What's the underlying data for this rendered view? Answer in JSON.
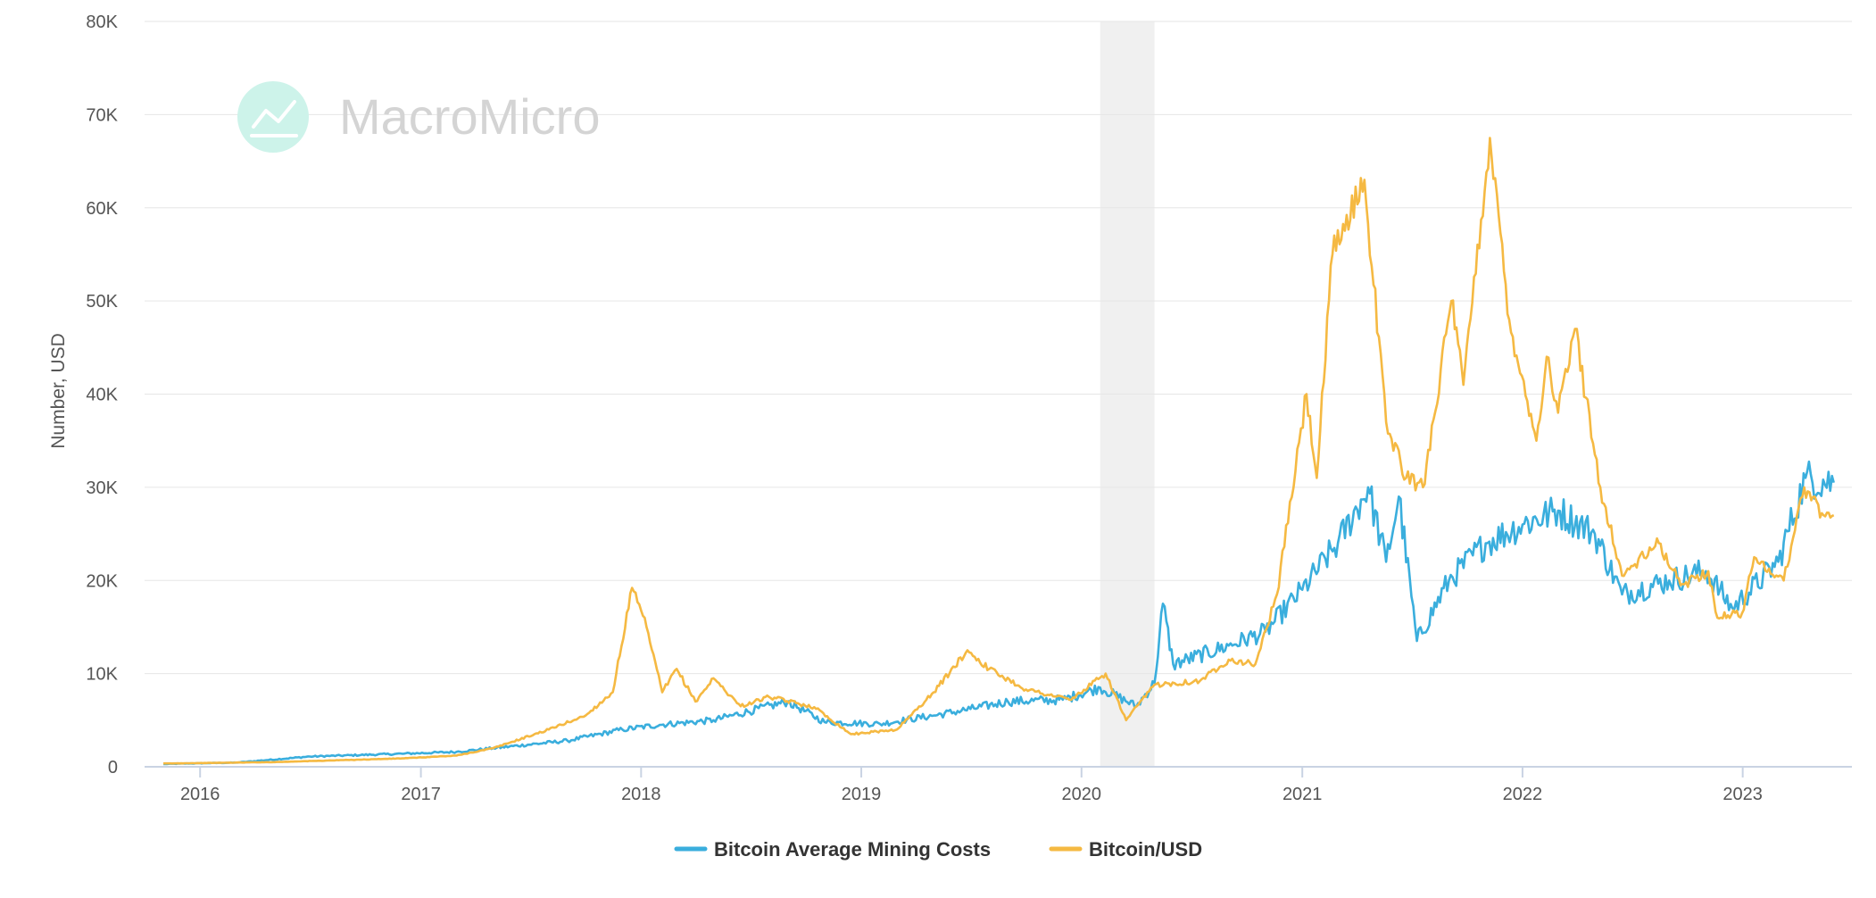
{
  "watermark": {
    "text": "MacroMicro",
    "icon": "chart-trend-icon",
    "color": "#cdf3ea"
  },
  "chart_data": {
    "type": "line",
    "title": "",
    "xlabel": "",
    "ylabel": "Number, USD",
    "xlim": [
      "2015-10-01",
      "2023-07-01"
    ],
    "ylim": [
      0,
      80000
    ],
    "y_ticks": [
      0,
      10000,
      20000,
      30000,
      40000,
      50000,
      60000,
      70000,
      80000
    ],
    "y_tick_labels": [
      "0",
      "10K",
      "20K",
      "30K",
      "40K",
      "50K",
      "60K",
      "70K",
      "80K"
    ],
    "x_ticks": [
      "2016-01-01",
      "2017-01-01",
      "2018-01-01",
      "2019-01-01",
      "2020-01-01",
      "2021-01-01",
      "2022-01-01",
      "2023-01-01"
    ],
    "x_tick_labels": [
      "2016",
      "2017",
      "2018",
      "2019",
      "2020",
      "2021",
      "2022",
      "2023"
    ],
    "grid": "horizontal",
    "legend_position": "bottom-center",
    "shaded_region": {
      "start": "2020-02-01",
      "end": "2020-05-01",
      "color": "#f0f0f0"
    },
    "series": [
      {
        "name": "Bitcoin Average Mining Costs",
        "color": "#3aaedd",
        "points": [
          [
            "2015-11-01",
            300
          ],
          [
            "2016-03-01",
            450
          ],
          [
            "2016-07-01",
            1100
          ],
          [
            "2016-12-01",
            1400
          ],
          [
            "2017-03-01",
            1600
          ],
          [
            "2017-05-01",
            2000
          ],
          [
            "2017-09-01",
            2800
          ],
          [
            "2017-12-01",
            4000
          ],
          [
            "2018-02-01",
            4500
          ],
          [
            "2018-05-01",
            5000
          ],
          [
            "2018-09-01",
            7000
          ],
          [
            "2018-11-01",
            4800
          ],
          [
            "2019-02-01",
            4600
          ],
          [
            "2019-05-01",
            5500
          ],
          [
            "2019-07-01",
            6200
          ],
          [
            "2019-09-01",
            7000
          ],
          [
            "2019-12-01",
            7200
          ],
          [
            "2020-02-01",
            8500
          ],
          [
            "2020-04-01",
            6500
          ],
          [
            "2020-05-01",
            9000
          ],
          [
            "2020-05-15",
            17500
          ],
          [
            "2020-06-01",
            11000
          ],
          [
            "2020-09-01",
            13000
          ],
          [
            "2020-11-01",
            14500
          ],
          [
            "2021-01-01",
            19000
          ],
          [
            "2021-03-01",
            24000
          ],
          [
            "2021-04-20",
            30000
          ],
          [
            "2021-05-20",
            22000
          ],
          [
            "2021-06-10",
            29000
          ],
          [
            "2021-07-10",
            13500
          ],
          [
            "2021-09-01",
            20000
          ],
          [
            "2021-11-01",
            24000
          ],
          [
            "2022-01-01",
            26000
          ],
          [
            "2022-03-01",
            27500
          ],
          [
            "2022-05-01",
            25000
          ],
          [
            "2022-06-15",
            18500
          ],
          [
            "2022-09-01",
            20000
          ],
          [
            "2022-11-01",
            21000
          ],
          [
            "2022-12-15",
            17000
          ],
          [
            "2023-03-01",
            22000
          ],
          [
            "2023-04-15",
            31000
          ],
          [
            "2023-06-01",
            30500
          ]
        ]
      },
      {
        "name": "Bitcoin/USD",
        "color": "#f5b942",
        "points": [
          [
            "2015-11-01",
            350
          ],
          [
            "2016-05-01",
            500
          ],
          [
            "2016-12-01",
            900
          ],
          [
            "2017-03-01",
            1200
          ],
          [
            "2017-05-01",
            2000
          ],
          [
            "2017-08-01",
            4000
          ],
          [
            "2017-10-01",
            5500
          ],
          [
            "2017-11-15",
            8000
          ],
          [
            "2017-12-17",
            19200
          ],
          [
            "2018-01-10",
            15000
          ],
          [
            "2018-02-05",
            8000
          ],
          [
            "2018-03-01",
            10500
          ],
          [
            "2018-04-01",
            7000
          ],
          [
            "2018-05-01",
            9500
          ],
          [
            "2018-06-15",
            6500
          ],
          [
            "2018-08-01",
            7500
          ],
          [
            "2018-10-15",
            6400
          ],
          [
            "2018-12-15",
            3500
          ],
          [
            "2019-03-01",
            4000
          ],
          [
            "2019-05-01",
            8000
          ],
          [
            "2019-06-26",
            12500
          ],
          [
            "2019-08-01",
            10500
          ],
          [
            "2019-10-01",
            8300
          ],
          [
            "2019-12-15",
            7200
          ],
          [
            "2020-02-10",
            10000
          ],
          [
            "2020-03-15",
            5000
          ],
          [
            "2020-05-01",
            8800
          ],
          [
            "2020-07-15",
            9200
          ],
          [
            "2020-09-01",
            11500
          ],
          [
            "2020-10-15",
            11000
          ],
          [
            "2020-11-20",
            18500
          ],
          [
            "2021-01-08",
            40000
          ],
          [
            "2021-01-25",
            31000
          ],
          [
            "2021-02-20",
            55000
          ],
          [
            "2021-04-14",
            63000
          ],
          [
            "2021-05-20",
            37000
          ],
          [
            "2021-06-22",
            31000
          ],
          [
            "2021-07-20",
            30000
          ],
          [
            "2021-09-05",
            50000
          ],
          [
            "2021-09-25",
            41000
          ],
          [
            "2021-11-08",
            67500
          ],
          [
            "2021-12-10",
            48000
          ],
          [
            "2022-01-24",
            35000
          ],
          [
            "2022-02-10",
            44000
          ],
          [
            "2022-03-01",
            38000
          ],
          [
            "2022-03-29",
            47000
          ],
          [
            "2022-05-10",
            30000
          ],
          [
            "2022-06-15",
            20500
          ],
          [
            "2022-08-15",
            24000
          ],
          [
            "2022-09-20",
            19500
          ],
          [
            "2022-11-05",
            21000
          ],
          [
            "2022-11-20",
            16000
          ],
          [
            "2022-12-31",
            16500
          ],
          [
            "2023-01-20",
            22500
          ],
          [
            "2023-03-10",
            20000
          ],
          [
            "2023-04-13",
            30000
          ],
          [
            "2023-05-15",
            27000
          ],
          [
            "2023-06-01",
            27000
          ]
        ]
      }
    ]
  }
}
